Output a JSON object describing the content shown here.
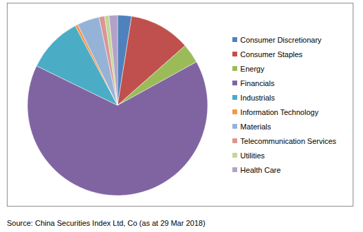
{
  "chart_data": {
    "type": "pie",
    "categories": [
      "Consumer Discretionary",
      "Consumer Staples",
      "Energy",
      "Financials",
      "Industrials",
      "Information Technology",
      "Materials",
      "Telecommunication Services",
      "Utilities",
      "Health Care"
    ],
    "values": [
      2.5,
      11,
      3.5,
      65.2,
      10,
      0.5,
      4,
      1,
      0.8,
      1.5
    ],
    "colors": [
      "#4F81BD",
      "#C0504D",
      "#9BBB59",
      "#8064A2",
      "#4BACC6",
      "#F79646",
      "#95B3D7",
      "#D99694",
      "#C3D69B",
      "#B3A2C7"
    ],
    "legend": "right",
    "annotation": "Source: China Securities Index Ltd, Co (as at 29 Mar 2018)"
  }
}
